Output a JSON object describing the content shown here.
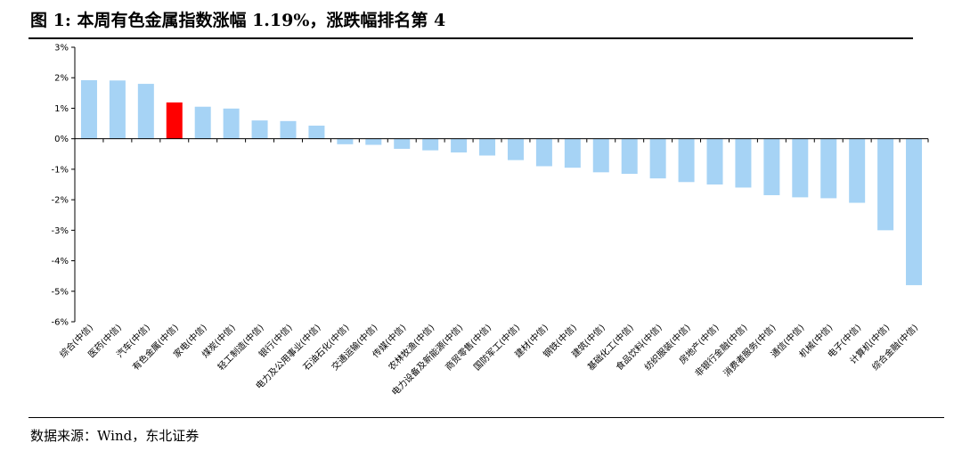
{
  "header": {
    "title": "图  1:  本周有色金属指数涨幅 1.19%，涨跌幅排名第 4"
  },
  "footer": {
    "source": "数据来源：Wind，东北证券"
  },
  "colors": {
    "bar": "#a6d3f5",
    "highlight_bar": "#ff0000",
    "axis": "#000000"
  },
  "chart_data": {
    "type": "bar",
    "title": "",
    "xlabel": "",
    "ylabel": "",
    "ylim": [
      -6,
      3
    ],
    "yticks": [
      3,
      2,
      1,
      0,
      -1,
      -2,
      -3,
      -4,
      -5,
      -6
    ],
    "ytick_labels": [
      "3%",
      "2%",
      "1%",
      "0%",
      "-1%",
      "-2%",
      "-3%",
      "-4%",
      "-5%",
      "-6%"
    ],
    "grid": false,
    "highlight_category": "有色金属(中信)",
    "categories": [
      "综合(中信)",
      "医药(中信)",
      "汽车(中信)",
      "有色金属(中信)",
      "家电(中信)",
      "煤炭(中信)",
      "轻工制造(中信)",
      "银行(中信)",
      "电力及公用事业(中信)",
      "石油石化(中信)",
      "交通运输(中信)",
      "传媒(中信)",
      "农林牧渔(中信)",
      "电力设备及新能源(中信)",
      "商贸零售(中信)",
      "国防军工(中信)",
      "建材(中信)",
      "钢铁(中信)",
      "建筑(中信)",
      "基础化工(中信)",
      "食品饮料(中信)",
      "纺织服装(中信)",
      "房地产(中信)",
      "非银行金融(中信)",
      "消费者服务(中信)",
      "通信(中信)",
      "机械(中信)",
      "电子(中信)",
      "计算机(中信)",
      "综合金融(中信)"
    ],
    "values": [
      1.92,
      1.91,
      1.8,
      1.19,
      1.05,
      0.99,
      0.6,
      0.58,
      0.43,
      -0.18,
      -0.2,
      -0.33,
      -0.38,
      -0.45,
      -0.55,
      -0.7,
      -0.9,
      -0.95,
      -1.1,
      -1.15,
      -1.3,
      -1.42,
      -1.5,
      -1.6,
      -1.85,
      -1.92,
      -1.95,
      -2.1,
      -3.0,
      -4.8
    ]
  }
}
